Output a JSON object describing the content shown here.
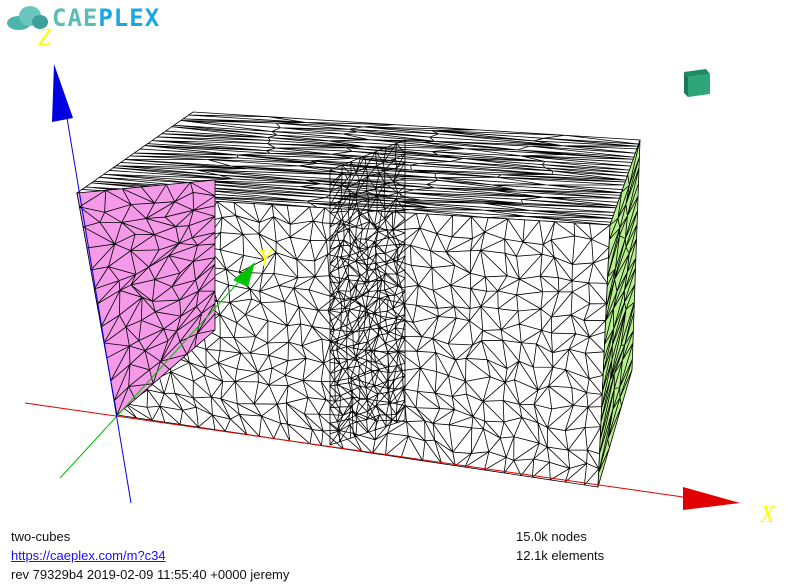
{
  "logo": {
    "part1": "CAE",
    "part2": "PLEX"
  },
  "model": {
    "name": "two-cubes",
    "link": "https://caeplex.com/m?c34",
    "revision": "rev 79329b4 2019-02-09 11:55:40 +0000 jeremy",
    "nodes": "15.0k nodes",
    "elements": "12.1k elements"
  },
  "axes": {
    "x": "X",
    "y": "Y",
    "z": "Z"
  },
  "colors": {
    "x_axis": "#e00000",
    "y_axis": "#00c000",
    "z_axis": "#0000e0",
    "axis_label": "#ffff00",
    "face_left": "#f49ae8",
    "face_right": "#b4f08c",
    "view_cube": "#2ea67a"
  }
}
